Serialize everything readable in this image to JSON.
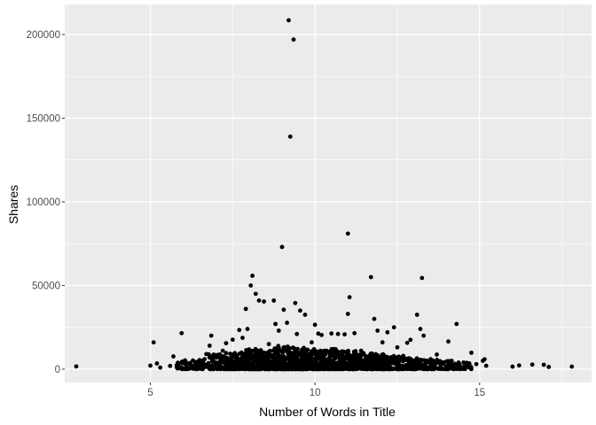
{
  "chart_data": {
    "type": "scatter",
    "title": "",
    "xlabel": "Number of Words in Title",
    "ylabel": "Shares",
    "xlim": [
      2.4,
      18.4
    ],
    "ylim": [
      -8000,
      218000
    ],
    "x_ticks": [
      5,
      10,
      15
    ],
    "y_ticks": [
      0,
      50000,
      100000,
      150000,
      200000
    ],
    "x_tick_labels": [
      "5",
      "10",
      "15"
    ],
    "y_tick_labels": [
      "0",
      "50000",
      "100000",
      "150000",
      "200000"
    ],
    "grid": true,
    "legend": "none",
    "panel_color": "#ebebeb",
    "grid_color": "#ffffff",
    "point_color": "#000000",
    "points": [
      [
        2.75,
        1600
      ],
      [
        5.0,
        2100
      ],
      [
        5.1,
        16000
      ],
      [
        5.2,
        3400
      ],
      [
        5.3,
        900
      ],
      [
        5.6,
        1900
      ],
      [
        5.7,
        7600
      ],
      [
        5.8,
        2300
      ],
      [
        5.95,
        21500
      ],
      [
        6.05,
        5200
      ],
      [
        6.2,
        2800
      ],
      [
        6.4,
        1200
      ],
      [
        6.7,
        9000
      ],
      [
        6.8,
        14000
      ],
      [
        6.85,
        20000
      ],
      [
        6.9,
        6300
      ],
      [
        7.2,
        11000
      ],
      [
        7.3,
        15500
      ],
      [
        7.5,
        17600
      ],
      [
        7.7,
        23400
      ],
      [
        7.8,
        18700
      ],
      [
        7.9,
        36000
      ],
      [
        7.95,
        24000
      ],
      [
        8.05,
        50000
      ],
      [
        8.1,
        55800
      ],
      [
        8.2,
        45000
      ],
      [
        8.3,
        41000
      ],
      [
        8.45,
        40400
      ],
      [
        8.6,
        15000
      ],
      [
        8.75,
        41000
      ],
      [
        8.8,
        27000
      ],
      [
        8.9,
        23000
      ],
      [
        9.0,
        73000
      ],
      [
        9.05,
        35500
      ],
      [
        9.15,
        27700
      ],
      [
        9.2,
        208500
      ],
      [
        9.25,
        139000
      ],
      [
        9.35,
        197000
      ],
      [
        9.4,
        39500
      ],
      [
        9.45,
        21000
      ],
      [
        9.55,
        35000
      ],
      [
        9.7,
        32500
      ],
      [
        9.9,
        16000
      ],
      [
        10.0,
        26500
      ],
      [
        10.1,
        21200
      ],
      [
        10.2,
        20400
      ],
      [
        10.5,
        21300
      ],
      [
        10.7,
        21000
      ],
      [
        10.9,
        20800
      ],
      [
        11.0,
        81000
      ],
      [
        11.05,
        43000
      ],
      [
        11.0,
        33000
      ],
      [
        11.2,
        21500
      ],
      [
        11.4,
        11000
      ],
      [
        11.7,
        55000
      ],
      [
        11.8,
        30000
      ],
      [
        11.9,
        23000
      ],
      [
        12.05,
        16000
      ],
      [
        12.2,
        22000
      ],
      [
        12.4,
        25000
      ],
      [
        12.5,
        13000
      ],
      [
        12.8,
        15700
      ],
      [
        12.9,
        17500
      ],
      [
        13.1,
        32500
      ],
      [
        13.2,
        24000
      ],
      [
        13.25,
        54500
      ],
      [
        13.3,
        20000
      ],
      [
        13.5,
        4500
      ],
      [
        13.7,
        8700
      ],
      [
        13.9,
        4000
      ],
      [
        14.05,
        16500
      ],
      [
        14.3,
        27000
      ],
      [
        14.6,
        2200
      ],
      [
        14.75,
        9800
      ],
      [
        14.9,
        3000
      ],
      [
        15.1,
        5000
      ],
      [
        15.15,
        5900
      ],
      [
        15.2,
        2000
      ],
      [
        16.0,
        1500
      ],
      [
        16.2,
        2200
      ],
      [
        16.6,
        2700
      ],
      [
        16.95,
        2600
      ],
      [
        17.1,
        1300
      ],
      [
        17.8,
        1500
      ]
    ],
    "dense_band": {
      "note_free": true,
      "x_centers": [
        6.0,
        6.5,
        7.0,
        7.5,
        8.0,
        8.5,
        9.0,
        9.5,
        10.0,
        10.5,
        11.0,
        11.5,
        12.0,
        12.5,
        13.0,
        13.5,
        14.0,
        14.5
      ],
      "counts": [
        30,
        45,
        80,
        90,
        140,
        140,
        160,
        150,
        150,
        140,
        130,
        120,
        100,
        80,
        70,
        55,
        40,
        30
      ],
      "y_max": [
        5000,
        6000,
        9000,
        10000,
        12000,
        12000,
        14000,
        13000,
        12000,
        12000,
        11000,
        10000,
        9000,
        8000,
        7000,
        6000,
        5000,
        4000
      ]
    }
  }
}
